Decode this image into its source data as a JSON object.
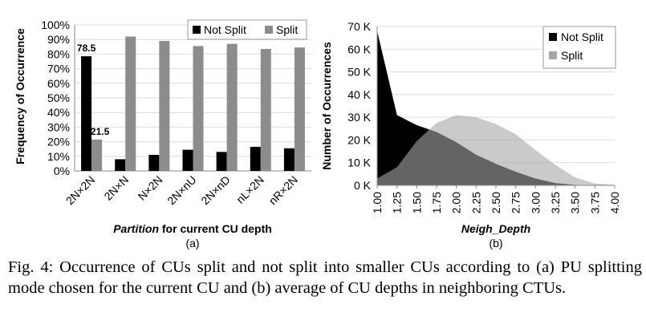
{
  "colors": {
    "not_split": "#000000",
    "split": "#8c8c8c",
    "axis": "#666666",
    "grid": "#d0d0d0"
  },
  "chart_data": [
    {
      "type": "bar",
      "panel_label": "(a)",
      "ylabel": "Frequency of Occurrence",
      "xlabel_italic": "Partition",
      "xlabel_rest": " for current CU depth",
      "ylim": [
        0,
        100
      ],
      "yticks": [
        "0%",
        "10%",
        "20%",
        "30%",
        "40%",
        "50%",
        "60%",
        "70%",
        "80%",
        "90%",
        "100%"
      ],
      "categories": [
        "2N×2N",
        "2N×N",
        "N×2N",
        "2N×nU",
        "2N×nD",
        "nL×2N",
        "nR×2N"
      ],
      "legend_position": "top-right",
      "series": [
        {
          "name": "Not Split",
          "values": [
            78.5,
            8,
            11,
            14.5,
            13,
            16.5,
            15.5
          ]
        },
        {
          "name": "Split",
          "values": [
            21.5,
            92,
            89,
            85.5,
            87,
            83.5,
            84.5
          ]
        }
      ],
      "data_labels": [
        {
          "series": 0,
          "index": 0,
          "text": "78.5"
        },
        {
          "series": 1,
          "index": 0,
          "text": "21.5"
        }
      ]
    },
    {
      "type": "area",
      "panel_label": "(b)",
      "ylabel": "Number of Occurrences",
      "xlabel": "Neigh_Depth",
      "ylim": [
        0,
        70000
      ],
      "yticks": [
        "0 K",
        "10 K",
        "20 K",
        "30 K",
        "40 K",
        "50 K",
        "60 K",
        "70 K"
      ],
      "x": [
        1.0,
        1.25,
        1.5,
        1.75,
        2.0,
        2.25,
        2.5,
        2.75,
        3.0,
        3.25,
        3.5,
        3.75,
        4.0
      ],
      "xticks": [
        "1.00",
        "1.25",
        "1.50",
        "1.75",
        "2.00",
        "2.25",
        "2.50",
        "2.75",
        "3.00",
        "3.25",
        "3.50",
        "3.75",
        "4.00"
      ],
      "legend_position": "top-right",
      "series": [
        {
          "name": "Not Split",
          "values": [
            68000,
            31000,
            26500,
            23500,
            19000,
            13500,
            9500,
            6000,
            3000,
            1000,
            200,
            0,
            0
          ]
        },
        {
          "name": "Split",
          "values": [
            3000,
            8000,
            19500,
            27500,
            31000,
            30000,
            27000,
            22500,
            15500,
            9000,
            3500,
            800,
            200
          ]
        }
      ]
    }
  ],
  "caption": "Fig. 4: Occurrence of CUs split and not split into smaller CUs according to (a) PU splitting mode chosen for the current CU and (b) average of CU depths in neighboring CTUs."
}
